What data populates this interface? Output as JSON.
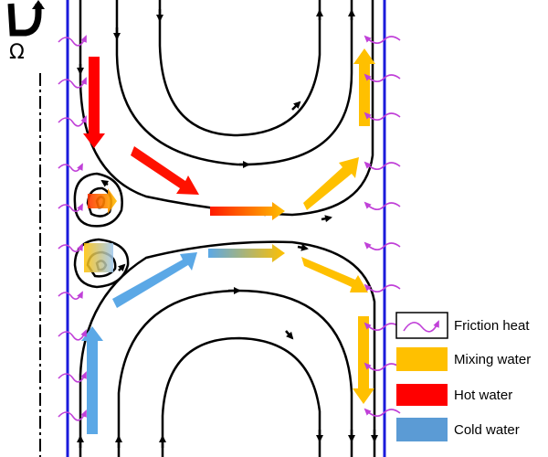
{
  "rotation_symbol": "Ω",
  "legend": {
    "friction_heat": "Friction heat",
    "mixing_water": "Mixing water",
    "hot_water": "Hot water",
    "cold_water": "Cold water"
  },
  "colors": {
    "wall": "#1a1adb",
    "streamline": "#000000",
    "friction": "#c040d8",
    "mixing": "#ffc000",
    "hot": "#ff0000",
    "cold": "#5ba8e6"
  },
  "icons": {
    "rotation": "rotation-arrow-icon",
    "friction": "squiggle-arrow-icon"
  }
}
